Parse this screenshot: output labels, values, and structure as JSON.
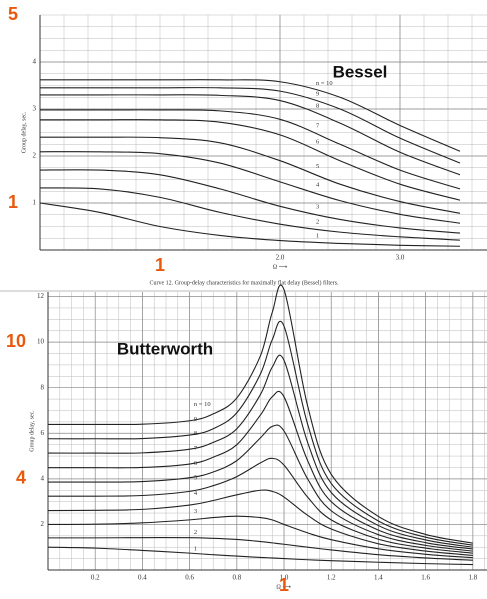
{
  "chart_data": [
    {
      "type": "line",
      "title": "Bessel",
      "caption": "Curve 12.   Group-delay characteristics for maximally flat delay (Bessel) filters.",
      "y_label": "Group delay, sec.",
      "x_label": "Ω ⟶",
      "x": [
        0,
        0.5,
        1,
        1.5,
        2,
        2.5,
        3,
        3.5
      ],
      "color": "#222",
      "series": [
        {
          "name": "1",
          "values": [
            1,
            0.8,
            0.5,
            0.31,
            0.2,
            0.14,
            0.1,
            0.08
          ]
        },
        {
          "name": "2",
          "values": [
            1.32,
            1.3,
            1.12,
            0.8,
            0.55,
            0.38,
            0.28,
            0.21
          ]
        },
        {
          "name": "3",
          "values": [
            1.7,
            1.7,
            1.6,
            1.3,
            0.93,
            0.65,
            0.47,
            0.36
          ]
        },
        {
          "name": "4",
          "values": [
            2.09,
            2.09,
            2.05,
            1.85,
            1.45,
            1.05,
            0.76,
            0.57
          ]
        },
        {
          "name": "5",
          "values": [
            2.4,
            2.4,
            2.39,
            2.28,
            1.9,
            1.4,
            1.03,
            0.78
          ]
        },
        {
          "name": "6",
          "values": [
            2.77,
            2.77,
            2.77,
            2.72,
            2.45,
            1.9,
            1.4,
            1.06
          ]
        },
        {
          "name": "7",
          "values": [
            2.98,
            2.98,
            2.98,
            2.96,
            2.78,
            2.25,
            1.7,
            1.3
          ]
        },
        {
          "name": "8",
          "values": [
            3.3,
            3.3,
            3.3,
            3.29,
            3.18,
            2.7,
            2.08,
            1.6
          ]
        },
        {
          "name": "9",
          "values": [
            3.45,
            3.45,
            3.45,
            3.45,
            3.38,
            3.0,
            2.38,
            1.85
          ]
        },
        {
          "name": "n = 10",
          "values": [
            3.62,
            3.62,
            3.62,
            3.62,
            3.58,
            3.25,
            2.65,
            2.1
          ]
        }
      ],
      "xlim": [
        0,
        3.725
      ],
      "ylim": [
        0,
        5
      ],
      "xticks": [
        {
          "value": 2,
          "label": "2.0"
        },
        {
          "value": 3,
          "label": "3.0"
        }
      ],
      "yticks": [
        1,
        2,
        3,
        4
      ],
      "grid": true,
      "xgrid_step": 0.2,
      "ygrid_step": 0.25,
      "annotations": [
        {
          "label": "5",
          "y": 5
        },
        {
          "label": "1",
          "y": 1
        },
        {
          "label": "1",
          "x": 1
        }
      ]
    },
    {
      "type": "line",
      "title": "Butterworth",
      "y_label": "Group delay, sec.",
      "x_label": "Ω ⟶",
      "x": [
        0,
        0.2,
        0.4,
        0.6,
        0.7,
        0.8,
        0.9,
        0.95,
        1.0,
        1.1,
        1.2,
        1.4,
        1.6,
        1.8
      ],
      "color": "#222",
      "series": [
        {
          "name": "1",
          "values": [
            1,
            0.96,
            0.86,
            0.74,
            0.67,
            0.61,
            0.55,
            0.53,
            0.5,
            0.45,
            0.41,
            0.34,
            0.28,
            0.24
          ]
        },
        {
          "name": "2",
          "values": [
            1.41,
            1.41,
            1.42,
            1.42,
            1.39,
            1.34,
            1.25,
            1.19,
            1.13,
            1.0,
            0.88,
            0.67,
            0.53,
            0.43
          ]
        },
        {
          "name": "3",
          "values": [
            2,
            2.01,
            2.07,
            2.2,
            2.3,
            2.36,
            2.3,
            2.2,
            2.0,
            1.63,
            1.33,
            0.93,
            0.69,
            0.54
          ]
        },
        {
          "name": "4",
          "values": [
            2.61,
            2.62,
            2.66,
            2.85,
            3.05,
            3.3,
            3.5,
            3.45,
            3.2,
            2.4,
            1.8,
            1.15,
            0.83,
            0.64
          ]
        },
        {
          "name": "5",
          "values": [
            3.24,
            3.24,
            3.27,
            3.45,
            3.7,
            4.1,
            4.7,
            4.9,
            4.6,
            3.2,
            2.2,
            1.35,
            0.96,
            0.74
          ]
        },
        {
          "name": "6",
          "values": [
            3.86,
            3.86,
            3.88,
            4.05,
            4.3,
            4.8,
            5.8,
            6.3,
            6.1,
            4.0,
            2.6,
            1.55,
            1.08,
            0.83
          ]
        },
        {
          "name": "7",
          "values": [
            4.49,
            4.49,
            4.5,
            4.65,
            4.95,
            5.5,
            6.8,
            7.6,
            7.6,
            4.8,
            3.0,
            1.75,
            1.2,
            0.92
          ]
        },
        {
          "name": "8",
          "values": [
            5.13,
            5.13,
            5.14,
            5.3,
            5.6,
            6.2,
            7.7,
            8.9,
            9.2,
            5.6,
            3.4,
            1.95,
            1.32,
            1.0
          ]
        },
        {
          "name": "9",
          "values": [
            5.76,
            5.76,
            5.77,
            5.92,
            6.2,
            6.9,
            8.6,
            10.1,
            10.7,
            6.4,
            3.8,
            2.15,
            1.44,
            1.09
          ]
        },
        {
          "name": "n = 10",
          "values": [
            6.39,
            6.39,
            6.4,
            6.55,
            6.85,
            7.55,
            9.4,
            11.3,
            12.3,
            7.2,
            4.2,
            2.35,
            1.56,
            1.18
          ]
        }
      ],
      "xlim": [
        0,
        1.86
      ],
      "ylim": [
        0,
        12.2
      ],
      "xticks": [
        0.2,
        0.4,
        0.6,
        0.8,
        {
          "value": 1,
          "label": "1.0"
        },
        1.2,
        1.4,
        1.6,
        1.8
      ],
      "yticks": [
        2,
        4,
        6,
        8,
        10,
        12
      ],
      "grid": true,
      "xgrid_step": 0.05,
      "ygrid_step": 0.5,
      "annotations": [
        {
          "label": "10",
          "y": 10
        },
        {
          "label": "4",
          "y": 4
        },
        {
          "label": "1",
          "x": 1
        }
      ]
    }
  ]
}
